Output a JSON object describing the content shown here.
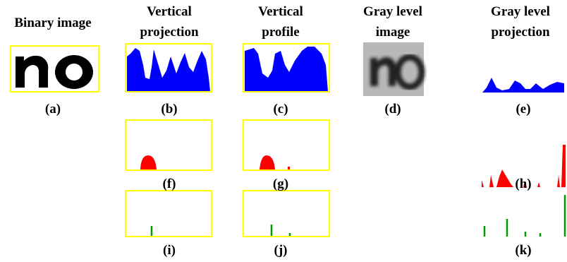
{
  "headers": [
    [
      "Binary image"
    ],
    [
      "Vertical",
      "projection"
    ],
    [
      "Vertical",
      "profile"
    ],
    [
      "Gray level",
      "image"
    ],
    [
      "Gray level",
      "projection"
    ]
  ],
  "panel_labels": [
    "(a)",
    "(b)",
    "(c)",
    "(d)",
    "(e)",
    "(f)",
    "(g)",
    "(h)",
    "(i)",
    "(j)",
    "(k)"
  ]
}
